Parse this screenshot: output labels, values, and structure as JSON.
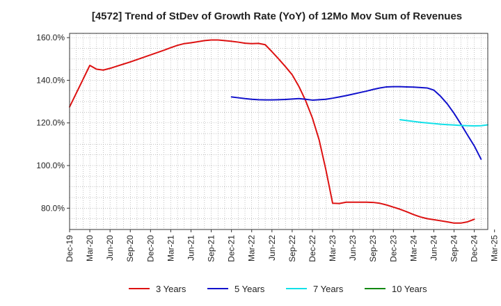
{
  "chart_data": {
    "type": "line",
    "title": "[4572]  Trend of StDev of Growth Rate (YoY) of 12Mo Mov Sum of Revenues",
    "xlabel": "",
    "ylabel": "",
    "ylim": [
      70,
      162
    ],
    "yticks": [
      80,
      100,
      120,
      140,
      160
    ],
    "ytick_labels": [
      "80.0%",
      "100.0%",
      "120.0%",
      "140.0%",
      "160.0%"
    ],
    "x_start": "Dec-19",
    "n_months": 63,
    "xtick_labels": [
      "Dec-19",
      "Mar-20",
      "Jun-20",
      "Sep-20",
      "Dec-20",
      "Mar-21",
      "Jun-21",
      "Sep-21",
      "Dec-21",
      "Mar-22",
      "Jun-22",
      "Sep-22",
      "Dec-22",
      "Mar-23",
      "Jun-23",
      "Sep-23",
      "Dec-23",
      "Mar-24",
      "Jun-24",
      "Sep-24",
      "Dec-24",
      "Mar-25"
    ],
    "grid": true,
    "legend_position": "bottom",
    "series": [
      {
        "name": "3 Years",
        "color": "#dd1111",
        "start_index": 0,
        "values": [
          127.5,
          134,
          140.5,
          147,
          145.2,
          144.8,
          145.6,
          146.6,
          147.6,
          148.6,
          149.7,
          150.8,
          151.9,
          153,
          154.1,
          155.3,
          156.4,
          157.2,
          157.6,
          158.1,
          158.6,
          158.9,
          158.9,
          158.6,
          158.3,
          157.9,
          157.4,
          157.2,
          157.3,
          156.7,
          153.4,
          150,
          146.4,
          142.6,
          137.1,
          130.4,
          122.3,
          112,
          98,
          82.3,
          82.2,
          82.8,
          82.8,
          82.8,
          82.8,
          82.7,
          82.3,
          81.5,
          80.5,
          79.5,
          78.3,
          77,
          75.9,
          75.1,
          74.6,
          74.1,
          73.6,
          73,
          73,
          73.6,
          74.8
        ]
      },
      {
        "name": "5 Years",
        "color": "#1111cc",
        "start_index": 24,
        "values": [
          132.2,
          131.8,
          131.4,
          131.1,
          130.9,
          130.8,
          130.8,
          130.9,
          131,
          131.2,
          131.4,
          131.1,
          130.7,
          130.9,
          131.1,
          131.6,
          132.2,
          132.8,
          133.5,
          134.2,
          134.9,
          135.7,
          136.4,
          136.9,
          137,
          137,
          136.9,
          136.8,
          136.6,
          136.4,
          135.4,
          132.5,
          128.9,
          124.5,
          119.5,
          114.3,
          109.2,
          103
        ]
      },
      {
        "name": "7 Years",
        "color": "#11e0e8",
        "start_index": 49,
        "values": [
          121.5,
          121.1,
          120.7,
          120.3,
          120,
          119.7,
          119.4,
          119.2,
          119,
          118.8,
          118.7,
          118.6,
          118.7,
          119.1
        ]
      },
      {
        "name": "10 Years",
        "color": "#118811",
        "start_index": 0,
        "values": []
      }
    ]
  }
}
